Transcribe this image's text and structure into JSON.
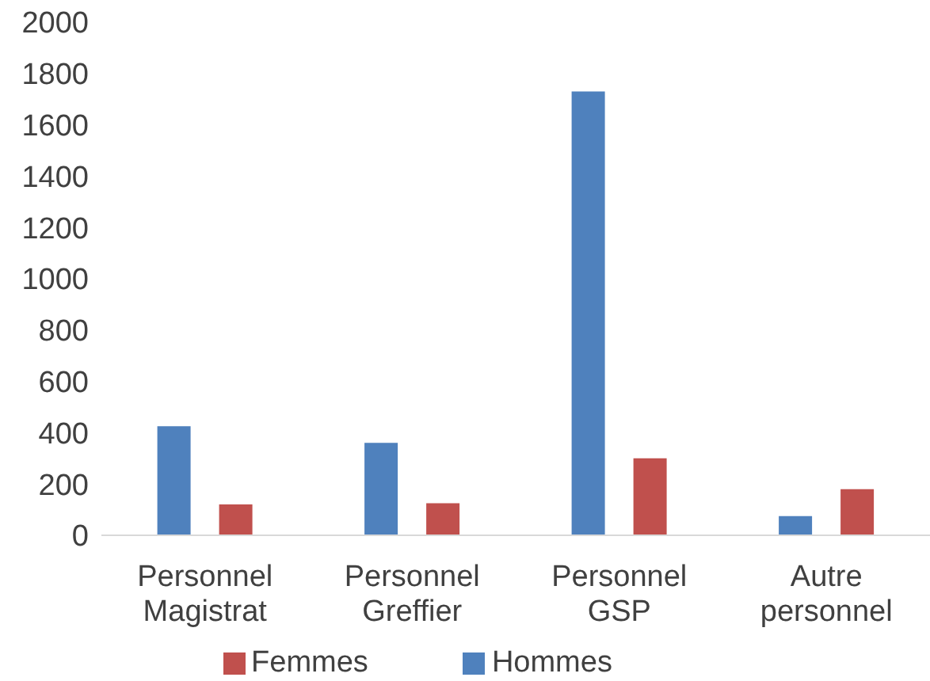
{
  "chart_data": {
    "type": "bar",
    "categories": [
      "Personnel Magistrat",
      "Personnel Greffier",
      "Personnel GSP",
      "Autre personnel"
    ],
    "series": [
      {
        "name": "Hommes",
        "color": "#4f81bd",
        "values": [
          425,
          360,
          1730,
          75
        ]
      },
      {
        "name": "Femmes",
        "color": "#c0504d",
        "values": [
          120,
          125,
          300,
          180
        ]
      }
    ],
    "ylim": [
      0,
      2000
    ],
    "yticks": [
      0,
      200,
      400,
      600,
      800,
      1000,
      1200,
      1400,
      1600,
      1800,
      2000
    ],
    "grid": false,
    "legend": "bottom"
  }
}
